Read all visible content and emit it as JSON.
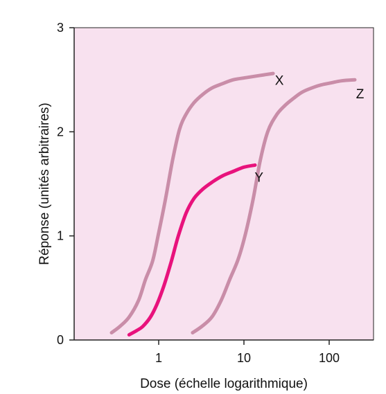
{
  "chart_data": {
    "type": "line",
    "title": "",
    "xlabel": "Dose (échelle logarithmique)",
    "ylabel": "Réponse (unités arbitraires)",
    "x_scale": "log",
    "xlim": [
      0.14,
      300
    ],
    "ylim": [
      0,
      3
    ],
    "x_ticks": [
      {
        "value": 1,
        "label": "1"
      },
      {
        "value": 10,
        "label": "10"
      },
      {
        "value": 100,
        "label": "100"
      }
    ],
    "y_ticks": [
      {
        "value": 0,
        "label": "0"
      },
      {
        "value": 1,
        "label": "1"
      },
      {
        "value": 2,
        "label": "2"
      },
      {
        "value": 3,
        "label": "3"
      }
    ],
    "grid": false,
    "colors": {
      "plot_background": "#f8e1ef",
      "axis": "#222222"
    },
    "series": [
      {
        "name": "X",
        "color": "#c98da8",
        "x": [
          0.28,
          0.35,
          0.45,
          0.58,
          0.7,
          0.85,
          1.0,
          1.2,
          1.45,
          1.75,
          2.1,
          2.6,
          3.3,
          4.2,
          5.5,
          7.5,
          10.5,
          15,
          22
        ],
        "y": [
          0.07,
          0.13,
          0.22,
          0.38,
          0.58,
          0.76,
          1.03,
          1.35,
          1.72,
          2.02,
          2.17,
          2.28,
          2.36,
          2.42,
          2.46,
          2.5,
          2.52,
          2.54,
          2.56
        ]
      },
      {
        "name": "Y",
        "color": "#e8127c",
        "x": [
          0.45,
          0.55,
          0.65,
          0.8,
          0.95,
          1.15,
          1.4,
          1.7,
          2.1,
          2.6,
          3.3,
          4.3,
          5.7,
          7.5,
          10,
          13.5
        ],
        "y": [
          0.05,
          0.09,
          0.13,
          0.22,
          0.34,
          0.52,
          0.75,
          1.0,
          1.22,
          1.36,
          1.45,
          1.52,
          1.58,
          1.62,
          1.66,
          1.68
        ]
      },
      {
        "name": "Z",
        "color": "#c98da8",
        "x": [
          2.5,
          3.2,
          4.2,
          5.4,
          6.8,
          8.6,
          10.5,
          12.8,
          15.5,
          19,
          24,
          30,
          38,
          48,
          62,
          80,
          105,
          140,
          200
        ],
        "y": [
          0.07,
          0.13,
          0.22,
          0.38,
          0.58,
          0.78,
          1.03,
          1.35,
          1.72,
          2.0,
          2.16,
          2.25,
          2.32,
          2.38,
          2.42,
          2.45,
          2.47,
          2.49,
          2.5
        ]
      }
    ],
    "annotations": [
      {
        "text": "X",
        "x": 26,
        "y": 2.45
      },
      {
        "text": "Y",
        "x": 15,
        "y": 1.52
      },
      {
        "text": "Z",
        "x": 230,
        "y": 2.32
      }
    ]
  }
}
